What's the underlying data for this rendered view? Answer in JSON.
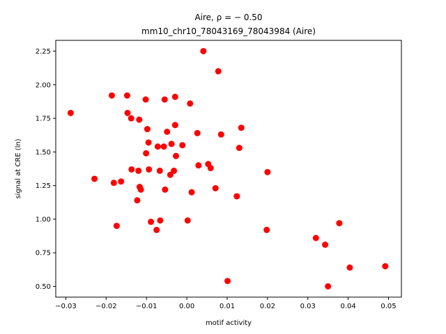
{
  "chart_data": {
    "type": "scatter",
    "title_line1": "Aire, ρ = − 0.50",
    "title_line2": "mm10_chr10_78043169_78043984 (Aire)",
    "xlabel": "motif activity",
    "ylabel": "signal at CRE (ln)",
    "xlim": [
      -0.0325,
      0.0532
    ],
    "ylim": [
      0.42,
      2.33
    ],
    "xticks": [
      -0.03,
      -0.02,
      -0.01,
      0.0,
      0.01,
      0.02,
      0.03,
      0.04,
      0.05
    ],
    "xtick_labels": [
      "−0.03",
      "−0.02",
      "−0.01",
      "0.00",
      "0.01",
      "0.02",
      "0.03",
      "0.04",
      "0.05"
    ],
    "yticks": [
      0.5,
      0.75,
      1.0,
      1.25,
      1.5,
      1.75,
      2.0,
      2.25
    ],
    "ytick_labels": [
      "0.50",
      "0.75",
      "1.00",
      "1.25",
      "1.50",
      "1.75",
      "2.00",
      "2.25"
    ],
    "grid": false,
    "marker_color": "#ff0000",
    "points": [
      {
        "x": -0.0288,
        "y": 1.79
      },
      {
        "x": -0.0229,
        "y": 1.3
      },
      {
        "x": -0.0186,
        "y": 1.92
      },
      {
        "x": -0.0181,
        "y": 1.27
      },
      {
        "x": -0.0174,
        "y": 0.95
      },
      {
        "x": -0.0163,
        "y": 1.28
      },
      {
        "x": -0.0148,
        "y": 1.92
      },
      {
        "x": -0.0147,
        "y": 1.79
      },
      {
        "x": -0.0138,
        "y": 1.75
      },
      {
        "x": -0.0137,
        "y": 1.37
      },
      {
        "x": -0.0123,
        "y": 1.14
      },
      {
        "x": -0.012,
        "y": 1.36
      },
      {
        "x": -0.0118,
        "y": 1.74
      },
      {
        "x": -0.0117,
        "y": 1.24
      },
      {
        "x": -0.0114,
        "y": 1.22
      },
      {
        "x": -0.0102,
        "y": 1.89
      },
      {
        "x": -0.0101,
        "y": 1.49
      },
      {
        "x": -0.0098,
        "y": 1.67
      },
      {
        "x": -0.0095,
        "y": 1.57
      },
      {
        "x": -0.0094,
        "y": 1.37
      },
      {
        "x": -0.0089,
        "y": 0.98
      },
      {
        "x": -0.0075,
        "y": 0.92
      },
      {
        "x": -0.0072,
        "y": 1.54
      },
      {
        "x": -0.0067,
        "y": 1.36
      },
      {
        "x": -0.0066,
        "y": 0.99
      },
      {
        "x": -0.0057,
        "y": 1.54
      },
      {
        "x": -0.0055,
        "y": 1.89
      },
      {
        "x": -0.0054,
        "y": 1.22
      },
      {
        "x": -0.0049,
        "y": 1.65
      },
      {
        "x": -0.0041,
        "y": 1.33
      },
      {
        "x": -0.0038,
        "y": 1.56
      },
      {
        "x": -0.0032,
        "y": 1.36
      },
      {
        "x": -0.0029,
        "y": 1.91
      },
      {
        "x": -0.0029,
        "y": 1.7
      },
      {
        "x": -0.0027,
        "y": 1.47
      },
      {
        "x": -0.0011,
        "y": 1.55
      },
      {
        "x": 0.0002,
        "y": 0.99
      },
      {
        "x": 0.0008,
        "y": 1.86
      },
      {
        "x": 0.0012,
        "y": 1.2
      },
      {
        "x": 0.0026,
        "y": 1.64
      },
      {
        "x": 0.0029,
        "y": 1.4
      },
      {
        "x": 0.0041,
        "y": 2.25
      },
      {
        "x": 0.0053,
        "y": 1.41
      },
      {
        "x": 0.0059,
        "y": 1.38
      },
      {
        "x": 0.0071,
        "y": 1.23
      },
      {
        "x": 0.0078,
        "y": 2.1
      },
      {
        "x": 0.0085,
        "y": 1.63
      },
      {
        "x": 0.0101,
        "y": 0.54
      },
      {
        "x": 0.0124,
        "y": 1.17
      },
      {
        "x": 0.013,
        "y": 1.53
      },
      {
        "x": 0.0135,
        "y": 1.68
      },
      {
        "x": 0.0198,
        "y": 0.92
      },
      {
        "x": 0.02,
        "y": 1.35
      },
      {
        "x": 0.032,
        "y": 0.86
      },
      {
        "x": 0.0343,
        "y": 0.81
      },
      {
        "x": 0.035,
        "y": 0.5
      },
      {
        "x": 0.0378,
        "y": 0.97
      },
      {
        "x": 0.0404,
        "y": 0.64
      },
      {
        "x": 0.0492,
        "y": 0.65
      }
    ]
  }
}
